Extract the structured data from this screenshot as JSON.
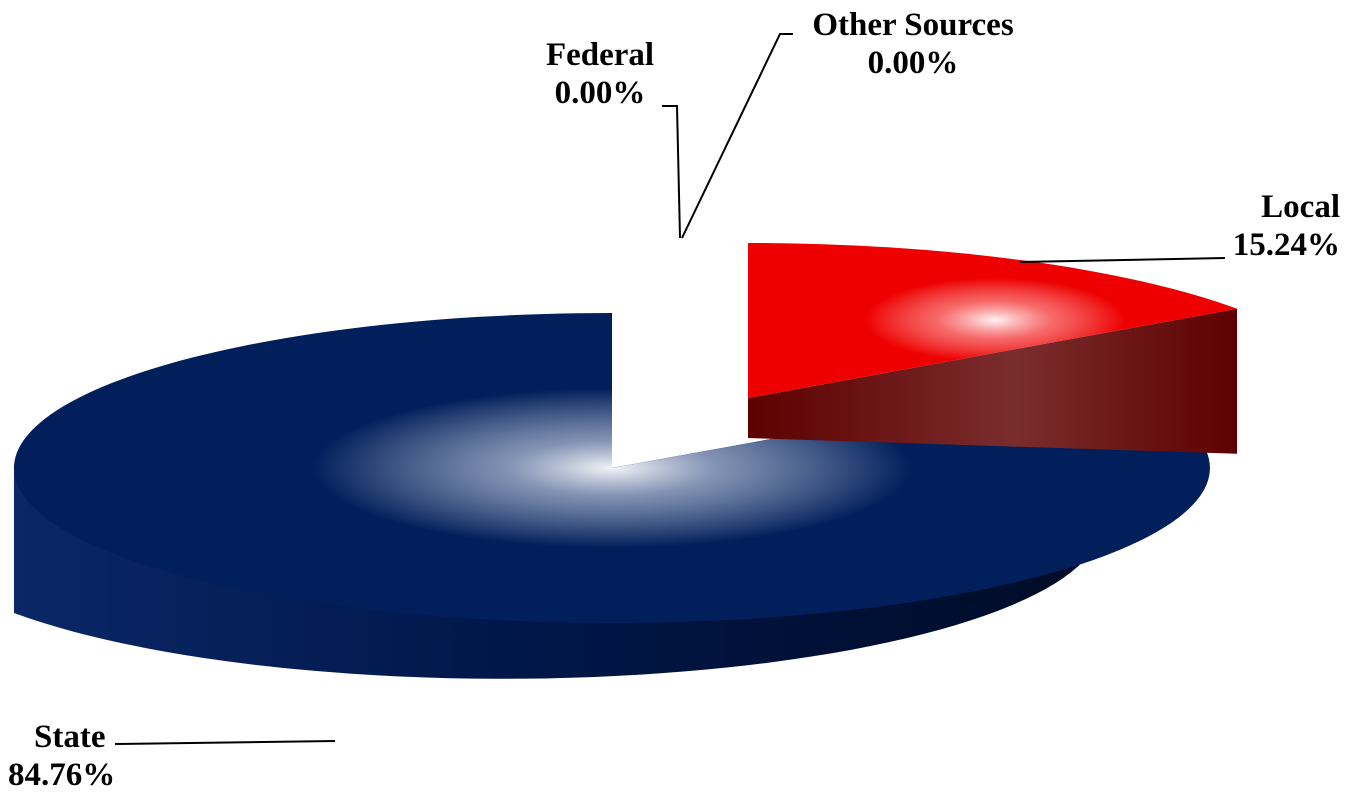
{
  "chart_data": {
    "type": "pie",
    "style": "3d-exploded",
    "slices": [
      {
        "name": "Local",
        "value": 15.24,
        "label": "15.24%",
        "color": "#ee0000",
        "side_color": "#6e0000"
      },
      {
        "name": "State",
        "value": 84.76,
        "label": "84.76%",
        "color": "#001f5b",
        "side_color": "#00133a"
      },
      {
        "name": "Federal",
        "value": 0.0,
        "label": "0.00%",
        "color": "#7f7f7f"
      },
      {
        "name": "Other Sources",
        "value": 0.0,
        "label": "0.00%",
        "color": "#7f7f7f"
      }
    ]
  }
}
